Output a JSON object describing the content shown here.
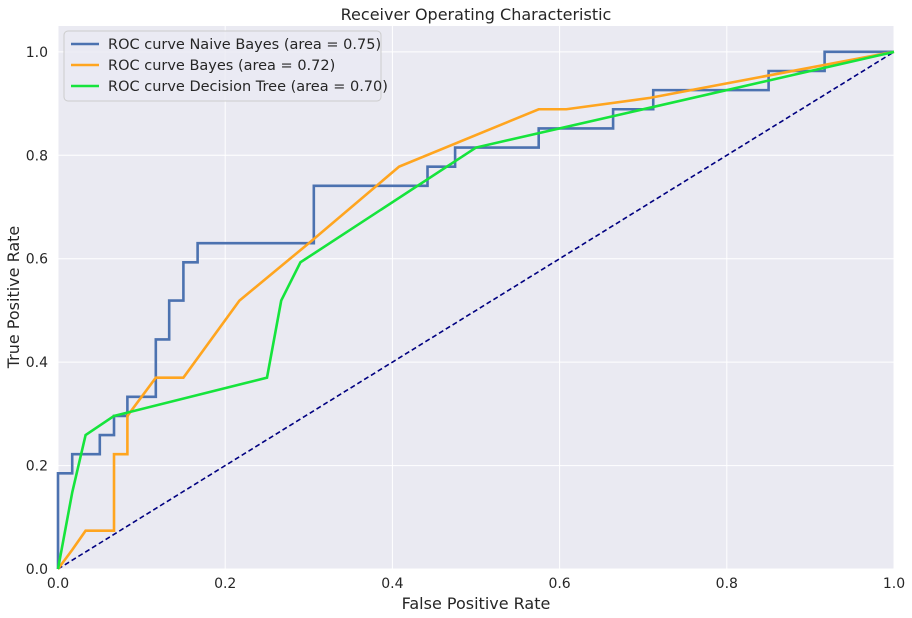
{
  "chart_data": {
    "type": "line",
    "title": "Receiver Operating Characteristic",
    "xlabel": "False Positive Rate",
    "ylabel": "True Positive Rate",
    "xlim": [
      0.0,
      1.0
    ],
    "ylim": [
      0.0,
      1.05
    ],
    "x_ticks": [
      "0.0",
      "0.2",
      "0.4",
      "0.6",
      "0.8",
      "1.0"
    ],
    "y_ticks": [
      "0.0",
      "0.2",
      "0.4",
      "0.6",
      "0.8",
      "1.0"
    ],
    "grid": true,
    "legend_position": "top-left",
    "background_color": "#EAEAF2",
    "series": [
      {
        "name": "ROC curve Naive Bayes (area = 0.75)",
        "color": "#4C72B0",
        "x": [
          0.0,
          0.0,
          0.017,
          0.017,
          0.05,
          0.05,
          0.067,
          0.067,
          0.083,
          0.083,
          0.117,
          0.117,
          0.133,
          0.133,
          0.15,
          0.15,
          0.167,
          0.167,
          0.306,
          0.306,
          0.442,
          0.442,
          0.475,
          0.475,
          0.575,
          0.575,
          0.664,
          0.664,
          0.712,
          0.712,
          0.85,
          0.85,
          0.917,
          0.917,
          1.0
        ],
        "y": [
          0.0,
          0.185,
          0.185,
          0.222,
          0.222,
          0.259,
          0.259,
          0.296,
          0.296,
          0.333,
          0.333,
          0.444,
          0.444,
          0.519,
          0.519,
          0.593,
          0.593,
          0.63,
          0.63,
          0.741,
          0.741,
          0.778,
          0.778,
          0.815,
          0.815,
          0.852,
          0.852,
          0.889,
          0.889,
          0.926,
          0.926,
          0.963,
          0.963,
          1.0,
          1.0
        ]
      },
      {
        "name": "ROC curve Bayes (area = 0.72)",
        "color": "#FFA51F",
        "x": [
          0.0,
          0.017,
          0.033,
          0.067,
          0.067,
          0.083,
          0.083,
          0.117,
          0.15,
          0.217,
          0.3,
          0.408,
          0.575,
          0.608,
          0.708,
          1.0
        ],
        "y": [
          0.0,
          0.037,
          0.074,
          0.074,
          0.222,
          0.222,
          0.296,
          0.37,
          0.37,
          0.519,
          0.63,
          0.778,
          0.889,
          0.889,
          0.911,
          1.0
        ]
      },
      {
        "name": "ROC curve Decision Tree (area = 0.70)",
        "color": "#16E43C",
        "x": [
          0.0,
          0.017,
          0.033,
          0.067,
          0.25,
          0.267,
          0.29,
          0.5,
          1.0
        ],
        "y": [
          0.0,
          0.148,
          0.259,
          0.296,
          0.37,
          0.519,
          0.593,
          0.815,
          1.0
        ]
      },
      {
        "name": "",
        "color": "#000080",
        "dashed": true,
        "x": [
          0.0,
          1.0
        ],
        "y": [
          0.0,
          1.0
        ]
      }
    ]
  }
}
